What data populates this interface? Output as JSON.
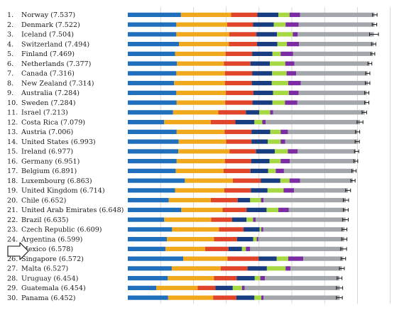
{
  "chart_data": {
    "type": "bar",
    "stacked": true,
    "orientation": "horizontal",
    "title": "",
    "xlabel": "",
    "ylabel": "",
    "xlim": [
      0,
      8
    ],
    "grid": true,
    "legend": "none",
    "segment_colors": [
      "#1f6fbd",
      "#f0a81c",
      "#e0452a",
      "#173c80",
      "#a6d843",
      "#7b2ca3",
      "#a3a6ab"
    ],
    "errorbar_color": "#1a1a1a",
    "rows": [
      {
        "rank": "1.",
        "label": "Norway (7.537)",
        "total": 7.537,
        "segments": [
          1.62,
          1.53,
          0.8,
          0.64,
          0.34,
          0.32,
          2.27
        ],
        "ci": [
          7.46,
          7.6
        ]
      },
      {
        "rank": "2.",
        "label": "Denmark (7.522)",
        "total": 7.522,
        "segments": [
          1.48,
          1.55,
          0.79,
          0.63,
          0.36,
          0.4,
          2.31
        ],
        "ci": [
          7.45,
          7.59
        ]
      },
      {
        "rank": "3.",
        "label": "Iceland (7.504)",
        "total": 7.504,
        "segments": [
          1.48,
          1.61,
          0.83,
          0.63,
          0.48,
          0.15,
          2.32
        ],
        "ci": [
          7.37,
          7.64
        ]
      },
      {
        "rank": "4.",
        "label": "Switzerland (7.494)",
        "total": 7.494,
        "segments": [
          1.56,
          1.52,
          0.86,
          0.62,
          0.29,
          0.37,
          2.28
        ],
        "ci": [
          7.43,
          7.56
        ]
      },
      {
        "rank": "5.",
        "label": "Finland (7.469)",
        "total": 7.469,
        "segments": [
          1.44,
          1.54,
          0.81,
          0.62,
          0.25,
          0.38,
          2.43
        ],
        "ci": [
          7.41,
          7.53
        ]
      },
      {
        "rank": "6.",
        "label": "Netherlands (7.377)",
        "total": 7.377,
        "segments": [
          1.5,
          1.43,
          0.81,
          0.59,
          0.47,
          0.28,
          2.29
        ],
        "ci": [
          7.32,
          7.44
        ]
      },
      {
        "rank": "7.",
        "label": "Canada (7.316)",
        "total": 7.316,
        "segments": [
          1.48,
          1.48,
          0.83,
          0.61,
          0.44,
          0.29,
          2.18
        ],
        "ci": [
          7.25,
          7.38
        ]
      },
      {
        "rank": "8.",
        "label": "New Zealand (7.314)",
        "total": 7.314,
        "segments": [
          1.41,
          1.55,
          0.82,
          0.61,
          0.5,
          0.38,
          2.05
        ],
        "ci": [
          7.24,
          7.38
        ]
      },
      {
        "rank": "9.",
        "label": "Australia (7.284)",
        "total": 7.284,
        "segments": [
          1.48,
          1.51,
          0.84,
          0.6,
          0.48,
          0.3,
          2.07
        ],
        "ci": [
          7.22,
          7.35
        ]
      },
      {
        "rank": "10.",
        "label": "Sweden (7.284)",
        "total": 7.284,
        "segments": [
          1.49,
          1.48,
          0.83,
          0.61,
          0.38,
          0.38,
          2.1
        ],
        "ci": [
          7.22,
          7.35
        ]
      },
      {
        "rank": "11.",
        "label": "Israel (7.213)",
        "total": 7.213,
        "segments": [
          1.38,
          1.38,
          0.84,
          0.41,
          0.33,
          0.09,
          2.79
        ],
        "ci": [
          7.14,
          7.28
        ]
      },
      {
        "rank": "12.",
        "label": "Costa Rica (7.079)",
        "total": 7.079,
        "segments": [
          1.11,
          1.42,
          0.75,
          0.58,
          0.24,
          0.1,
          2.88
        ],
        "ci": [
          6.99,
          7.17
        ]
      },
      {
        "rank": "13.",
        "label": "Austria (7.006)",
        "total": 7.006,
        "segments": [
          1.49,
          1.46,
          0.82,
          0.57,
          0.32,
          0.22,
          2.12
        ],
        "ci": [
          6.94,
          7.07
        ]
      },
      {
        "rank": "14.",
        "label": "United States (6.993)",
        "total": 6.993,
        "segments": [
          1.55,
          1.45,
          0.77,
          0.5,
          0.39,
          0.14,
          2.22
        ],
        "ci": [
          6.93,
          7.06
        ]
      },
      {
        "rank": "15.",
        "label": "Ireland (6.977)",
        "total": 6.977,
        "segments": [
          1.54,
          1.56,
          0.81,
          0.57,
          0.4,
          0.3,
          1.77
        ],
        "ci": [
          6.91,
          7.04
        ]
      },
      {
        "rank": "16.",
        "label": "Germany (6.951)",
        "total": 6.951,
        "segments": [
          1.49,
          1.47,
          0.8,
          0.56,
          0.34,
          0.28,
          2.01
        ],
        "ci": [
          6.89,
          7.01
        ]
      },
      {
        "rank": "17.",
        "label": "Belgium (6.891)",
        "total": 6.891,
        "segments": [
          1.46,
          1.46,
          0.82,
          0.54,
          0.23,
          0.25,
          2.13
        ],
        "ci": [
          6.83,
          6.96
        ]
      },
      {
        "rank": "18.",
        "label": "Luxembourg (6.863)",
        "total": 6.863,
        "segments": [
          1.74,
          1.46,
          0.85,
          0.6,
          0.28,
          0.32,
          1.61
        ],
        "ci": [
          6.8,
          6.93
        ]
      },
      {
        "rank": "19.",
        "label": "United Kingdom (6.714)",
        "total": 6.714,
        "segments": [
          1.44,
          1.5,
          0.81,
          0.51,
          0.49,
          0.32,
          1.64
        ],
        "ci": [
          6.64,
          6.79
        ]
      },
      {
        "rank": "20.",
        "label": "Chile (6.652)",
        "total": 6.652,
        "segments": [
          1.25,
          1.28,
          0.82,
          0.38,
          0.33,
          0.08,
          2.51
        ],
        "ci": [
          6.57,
          6.73
        ]
      },
      {
        "rank": "21.",
        "label": "United Arab Emirates (6.648)",
        "total": 6.648,
        "segments": [
          1.63,
          1.26,
          0.73,
          0.61,
          0.36,
          0.32,
          1.73
        ],
        "ci": [
          6.57,
          6.72
        ]
      },
      {
        "rank": "22.",
        "label": "Brazil (6.635)",
        "total": 6.635,
        "segments": [
          1.11,
          1.43,
          0.64,
          0.44,
          0.2,
          0.08,
          2.74
        ],
        "ci": [
          6.55,
          6.72
        ]
      },
      {
        "rank": "23.",
        "label": "Czech Republic (6.609)",
        "total": 6.609,
        "segments": [
          1.35,
          1.43,
          0.75,
          0.49,
          0.05,
          0.06,
          2.48
        ],
        "ci": [
          6.53,
          6.68
        ]
      },
      {
        "rank": "24.",
        "label": "Argentina (6.599)",
        "total": 6.599,
        "segments": [
          1.19,
          1.44,
          0.7,
          0.49,
          0.11,
          0.05,
          2.62
        ],
        "ci": [
          6.52,
          6.68
        ]
      },
      {
        "rank": "25.",
        "label": "Mexico (6.578)",
        "total": 6.578,
        "segments": [
          1.15,
          1.21,
          0.71,
          0.41,
          0.12,
          0.13,
          2.84
        ],
        "ci": [
          6.49,
          6.67
        ]
      },
      {
        "rank": "26.",
        "label": "Singapore (6.572)",
        "total": 6.572,
        "segments": [
          1.69,
          1.35,
          0.95,
          0.55,
          0.35,
          0.46,
          1.22
        ],
        "ci": [
          6.5,
          6.64
        ]
      },
      {
        "rank": "27.",
        "label": "Malta (6.527)",
        "total": 6.527,
        "segments": [
          1.34,
          1.49,
          0.82,
          0.59,
          0.57,
          0.15,
          1.57
        ],
        "ci": [
          6.45,
          6.6
        ]
      },
      {
        "rank": "28.",
        "label": "Uruguay (6.454)",
        "total": 6.454,
        "segments": [
          1.22,
          1.41,
          0.69,
          0.55,
          0.17,
          0.14,
          2.27
        ],
        "ci": [
          6.38,
          6.53
        ]
      },
      {
        "rank": "29.",
        "label": "Guatemala (6.454)",
        "total": 6.454,
        "segments": [
          0.87,
          1.26,
          0.54,
          0.53,
          0.28,
          0.08,
          2.9
        ],
        "ci": [
          6.36,
          6.55
        ]
      },
      {
        "rank": "30.",
        "label": "Panama (6.452)",
        "total": 6.452,
        "segments": [
          1.23,
          1.37,
          0.71,
          0.55,
          0.21,
          0.07,
          2.32
        ],
        "ci": [
          6.36,
          6.54
        ]
      }
    ]
  }
}
